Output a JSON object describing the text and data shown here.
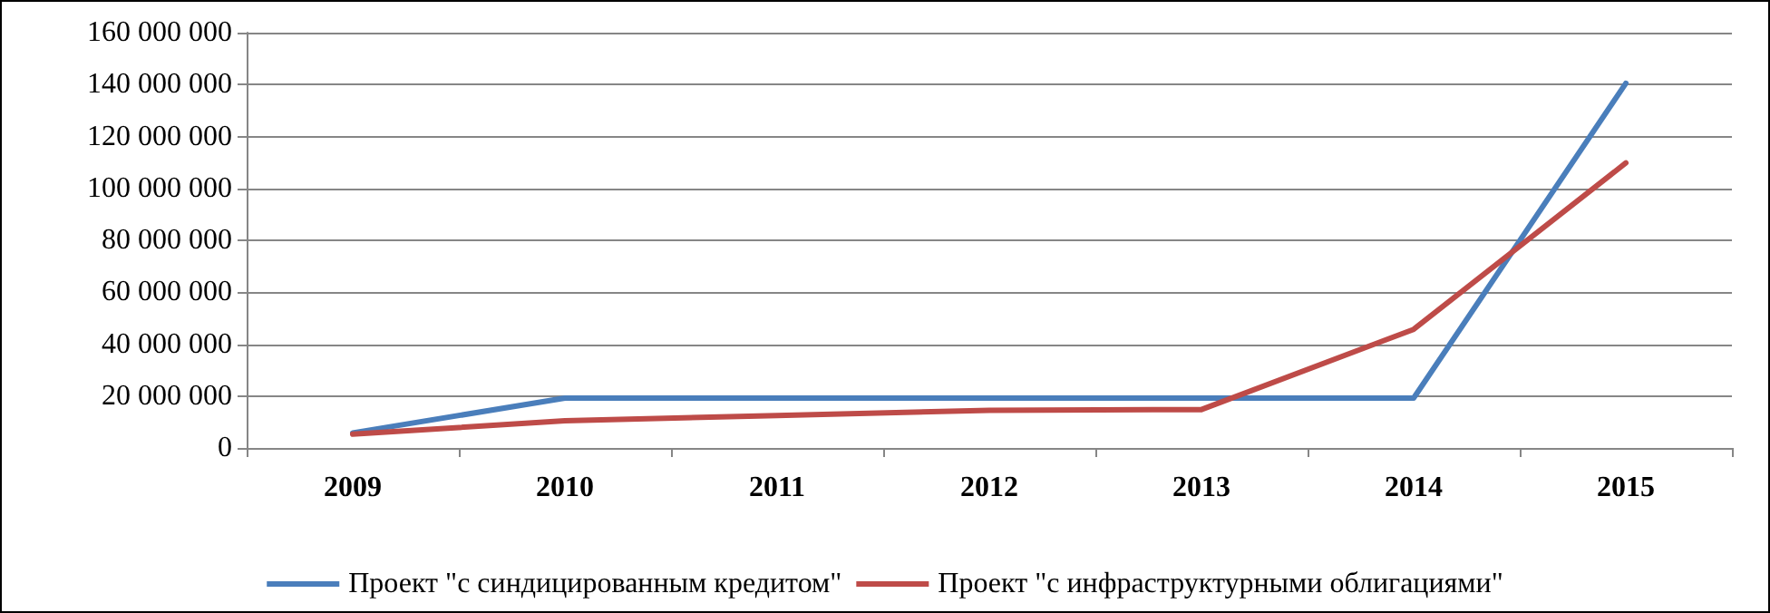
{
  "chart_data": {
    "type": "line",
    "categories": [
      "2009",
      "2010",
      "2011",
      "2012",
      "2013",
      "2014",
      "2015"
    ],
    "series": [
      {
        "name": "Проект \"с синдицированным кредитом\"",
        "color": "#4a7ebb",
        "values": [
          5800000,
          19200000,
          19200000,
          19200000,
          19200000,
          19200000,
          140500000
        ]
      },
      {
        "name": "Проект \"с инфраструктурными облигациями\"",
        "color": "#be4b48",
        "values": [
          5300000,
          10500000,
          12500000,
          14500000,
          14800000,
          45700000,
          109800000
        ]
      }
    ],
    "ylim": [
      0,
      160000000
    ],
    "yticks": [
      0,
      20000000,
      40000000,
      60000000,
      80000000,
      100000000,
      120000000,
      140000000,
      160000000
    ],
    "grid": "y",
    "legend": "bottom",
    "marker": "none",
    "line_style": "solid"
  }
}
